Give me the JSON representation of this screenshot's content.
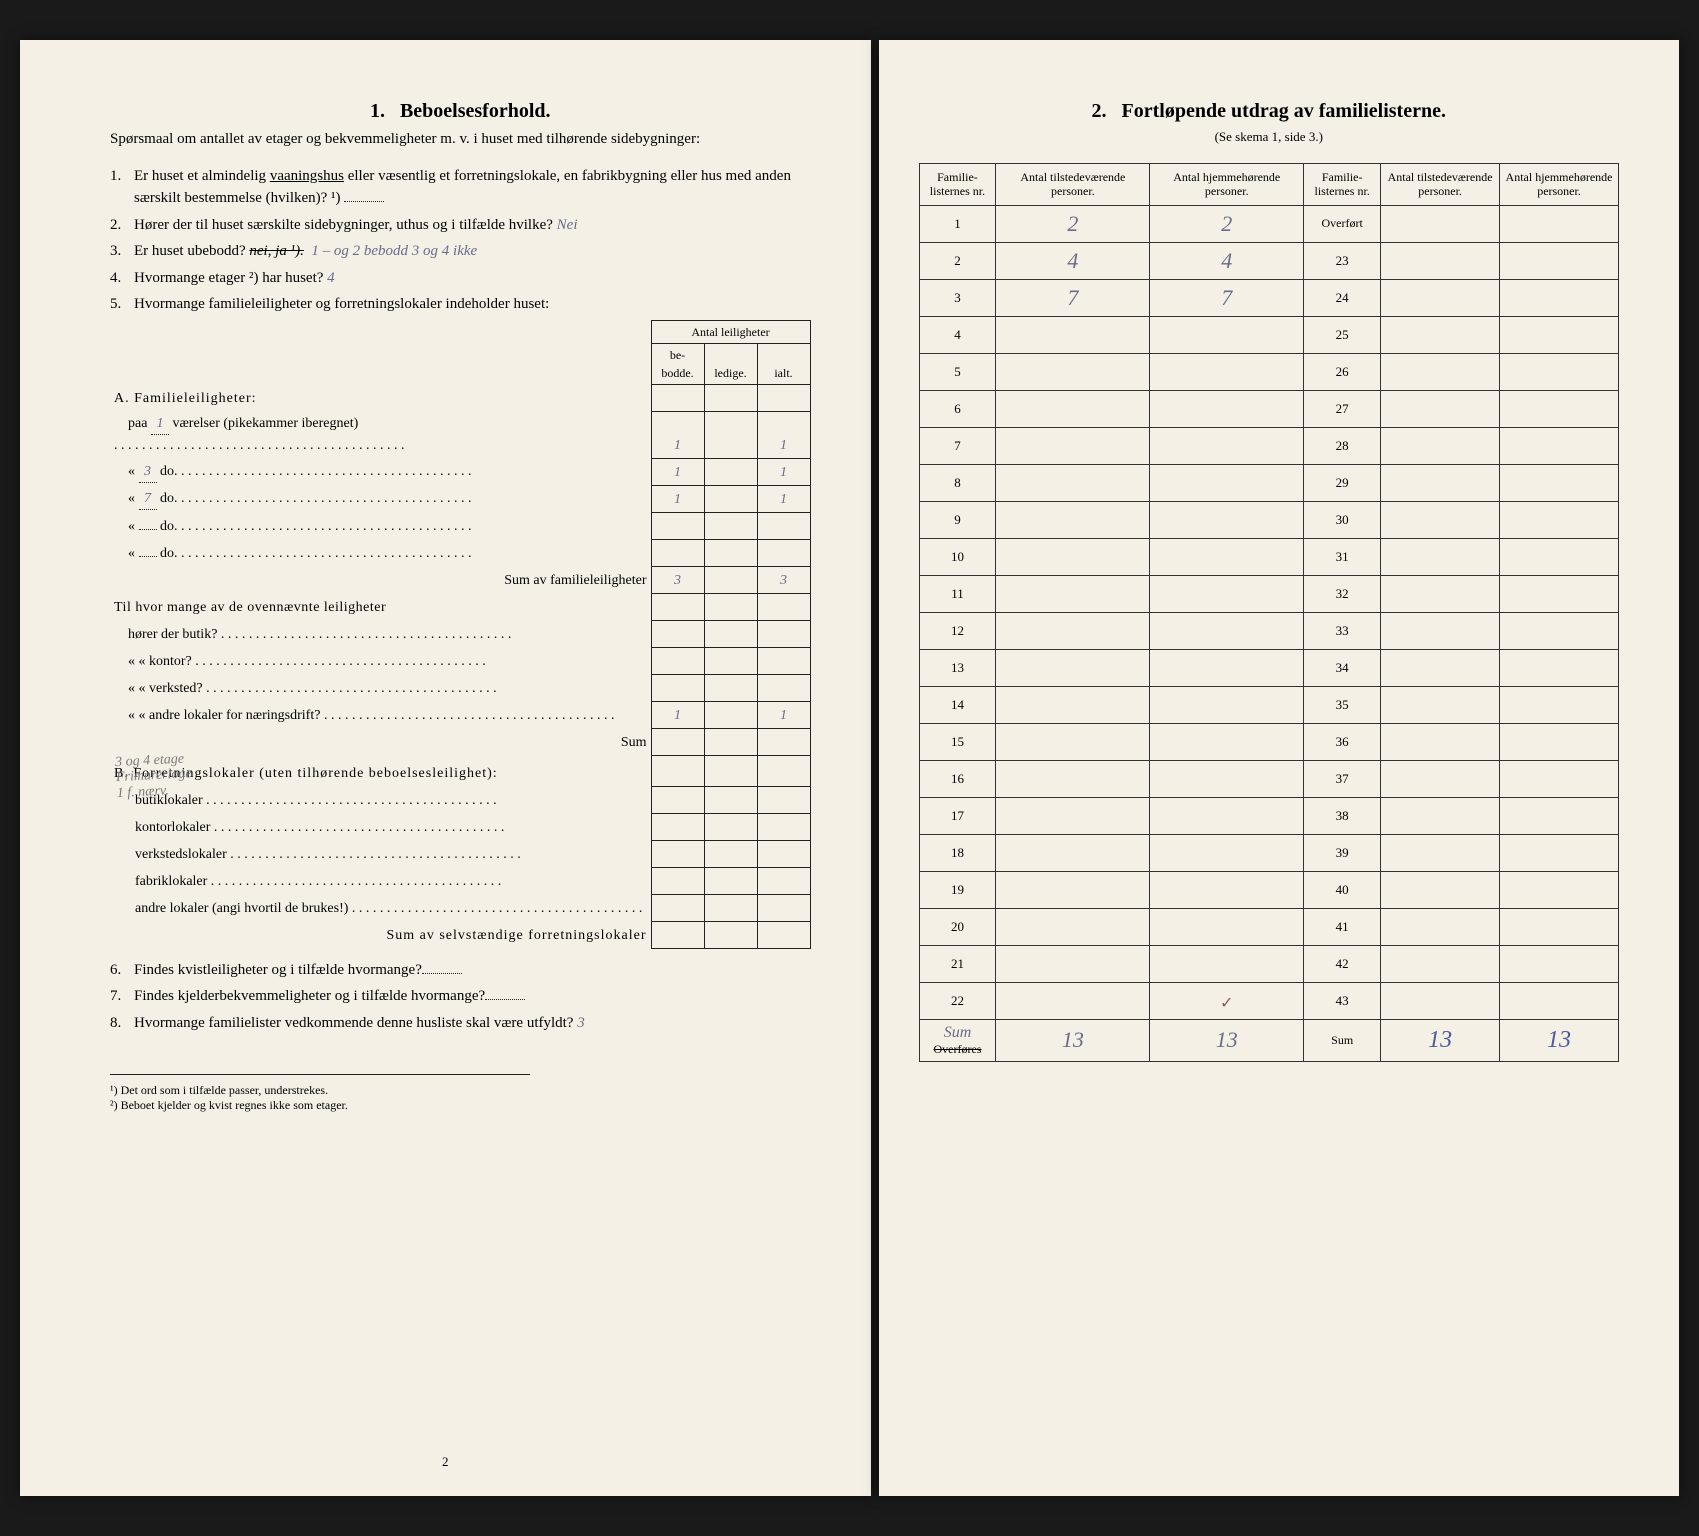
{
  "left": {
    "section_no": "1.",
    "section_title": "Beboelsesforhold.",
    "intro": "Spørsmaal om antallet av etager og bekvemmeligheter m. v. i huset med tilhørende sidebygninger:",
    "q1": {
      "num": "1.",
      "text_a": "Er huset et almindelig ",
      "underlined": "vaaningshus",
      "text_b": " eller væsentlig et forretningslokale, en fabrikbygning eller hus med anden særskilt bestemmelse (hvilken)? ¹)",
      "answer": ""
    },
    "q2": {
      "num": "2.",
      "text": "Hører der til huset særskilte sidebygninger, uthus og i tilfælde hvilke?",
      "answer": "Nei"
    },
    "q3": {
      "num": "3.",
      "text": "Er huset ubebodd? ",
      "printed_opts": "nei, ja ¹).",
      "answer": "1 – og 2 bebodd   3 og 4 ikke"
    },
    "q4": {
      "num": "4.",
      "text": "Hvormange etager ²) har huset?",
      "answer": "4"
    },
    "q5": {
      "num": "5.",
      "text": "Hvormange familieleiligheter og forretningslokaler indeholder huset:",
      "head_span": "Antal leiligheter",
      "head_cols": [
        "be-\nbodde.",
        "ledige.",
        "ialt."
      ],
      "A_title": "A. Familieleiligheter:",
      "rows_A": [
        {
          "label_pre": "paa",
          "rooms": "1",
          "label_post": "værelser (pikekammer iberegnet)",
          "bebodde": "1",
          "ledige": "",
          "ialt": "1"
        },
        {
          "label_pre": "«",
          "rooms": "3",
          "label_post": "do.",
          "bebodde": "1",
          "ledige": "",
          "ialt": "1"
        },
        {
          "label_pre": "«",
          "rooms": "7",
          "label_post": "do.",
          "bebodde": "1",
          "ledige": "",
          "ialt": "1"
        },
        {
          "label_pre": "«",
          "rooms": "",
          "label_post": "do.",
          "bebodde": "",
          "ledige": "",
          "ialt": ""
        },
        {
          "label_pre": "«",
          "rooms": "",
          "label_post": "do.",
          "bebodde": "",
          "ledige": "",
          "ialt": ""
        }
      ],
      "sum_A_label": "Sum av familieleiligheter",
      "sum_A": {
        "bebodde": "3",
        "ledige": "",
        "ialt": "3"
      },
      "mid_intro": "Til hvor mange av de ovennævnte leiligheter",
      "mid_rows": [
        {
          "label": "hører der butik?",
          "bebodde": "",
          "ledige": "",
          "ialt": ""
        },
        {
          "label": "«     « kontor?",
          "bebodde": "",
          "ledige": "",
          "ialt": ""
        },
        {
          "label": "«     « verksted?",
          "bebodde": "",
          "ledige": "",
          "ialt": ""
        },
        {
          "label": "«     « andre lokaler for næringsdrift?",
          "bebodde": "1",
          "ledige": "",
          "ialt": "1"
        }
      ],
      "mid_sum_label": "Sum",
      "B_title": "B. Forretningslokaler (uten tilhørende beboelsesleilighet):",
      "rows_B": [
        {
          "label": "butiklokaler",
          "bebodde": "",
          "ledige": "",
          "ialt": ""
        },
        {
          "label": "kontorlokaler",
          "bebodde": "",
          "ledige": "",
          "ialt": ""
        },
        {
          "label": "verkstedslokaler",
          "bebodde": "",
          "ledige": "",
          "ialt": ""
        },
        {
          "label": "fabriklokaler",
          "bebodde": "",
          "ledige": "",
          "ialt": ""
        },
        {
          "label": "andre lokaler (angi hvortil de brukes!)",
          "bebodde": "",
          "ledige": "",
          "ialt": ""
        }
      ],
      "sum_B_label": "Sum av selvstændige forretningslokaler",
      "margin_note": "3 og 4 etage\nFrimurerloge 1 f. nærv."
    },
    "q6": {
      "num": "6.",
      "text": "Findes kvistleiligheter og i tilfælde hvormange?",
      "answer": ""
    },
    "q7": {
      "num": "7.",
      "text": "Findes kjelderbekvemmeligheter og i tilfælde hvormange?",
      "answer": ""
    },
    "q8": {
      "num": "8.",
      "text": "Hvormange familielister vedkommende denne husliste skal være utfyldt?",
      "answer": "3"
    },
    "footnote1": "¹) Det ord som i tilfælde passer, understrekes.",
    "footnote2": "²) Beboet kjelder og kvist regnes ikke som etager.",
    "page_no": "2"
  },
  "right": {
    "section_no": "2.",
    "section_title": "Fortløpende utdrag av familielisterne.",
    "section_sub": "(Se skema 1, side 3.)",
    "headers": [
      "Familie-\nlisternes\nnr.",
      "Antal\ntilstedeværende\npersoner.",
      "Antal\nhjemmehørende\npersoner.",
      "Familie-\nlisternes\nnr.",
      "Antal\ntilstedeværende\npersoner.",
      "Antal\nhjemmehørende\npersoner."
    ],
    "left_block": [
      {
        "n": "1",
        "a": "2",
        "b": "2"
      },
      {
        "n": "2",
        "a": "4",
        "b": "4"
      },
      {
        "n": "3",
        "a": "7",
        "b": "7"
      },
      {
        "n": "4",
        "a": "",
        "b": ""
      },
      {
        "n": "5",
        "a": "",
        "b": ""
      },
      {
        "n": "6",
        "a": "",
        "b": ""
      },
      {
        "n": "7",
        "a": "",
        "b": ""
      },
      {
        "n": "8",
        "a": "",
        "b": ""
      },
      {
        "n": "9",
        "a": "",
        "b": ""
      },
      {
        "n": "10",
        "a": "",
        "b": ""
      },
      {
        "n": "11",
        "a": "",
        "b": ""
      },
      {
        "n": "12",
        "a": "",
        "b": ""
      },
      {
        "n": "13",
        "a": "",
        "b": ""
      },
      {
        "n": "14",
        "a": "",
        "b": ""
      },
      {
        "n": "15",
        "a": "",
        "b": ""
      },
      {
        "n": "16",
        "a": "",
        "b": ""
      },
      {
        "n": "17",
        "a": "",
        "b": ""
      },
      {
        "n": "18",
        "a": "",
        "b": ""
      },
      {
        "n": "19",
        "a": "",
        "b": ""
      },
      {
        "n": "20",
        "a": "",
        "b": ""
      },
      {
        "n": "21",
        "a": "",
        "b": ""
      },
      {
        "n": "22",
        "a": "",
        "b": ""
      }
    ],
    "right_block_first": {
      "label": "Overført",
      "a": "",
      "b": ""
    },
    "right_block": [
      {
        "n": "23"
      },
      {
        "n": "24"
      },
      {
        "n": "25"
      },
      {
        "n": "26"
      },
      {
        "n": "27"
      },
      {
        "n": "28"
      },
      {
        "n": "29"
      },
      {
        "n": "30"
      },
      {
        "n": "31"
      },
      {
        "n": "32"
      },
      {
        "n": "33"
      },
      {
        "n": "34"
      },
      {
        "n": "35"
      },
      {
        "n": "36"
      },
      {
        "n": "37"
      },
      {
        "n": "38"
      },
      {
        "n": "39"
      },
      {
        "n": "40"
      },
      {
        "n": "41"
      },
      {
        "n": "42"
      },
      {
        "n": "43"
      }
    ],
    "footer_left": {
      "label": "Overføres",
      "marginal": "Sum",
      "a": "13",
      "b": "13"
    },
    "footer_right": {
      "label": "Sum",
      "a": "13",
      "b": "13"
    },
    "tick_row": "22"
  }
}
